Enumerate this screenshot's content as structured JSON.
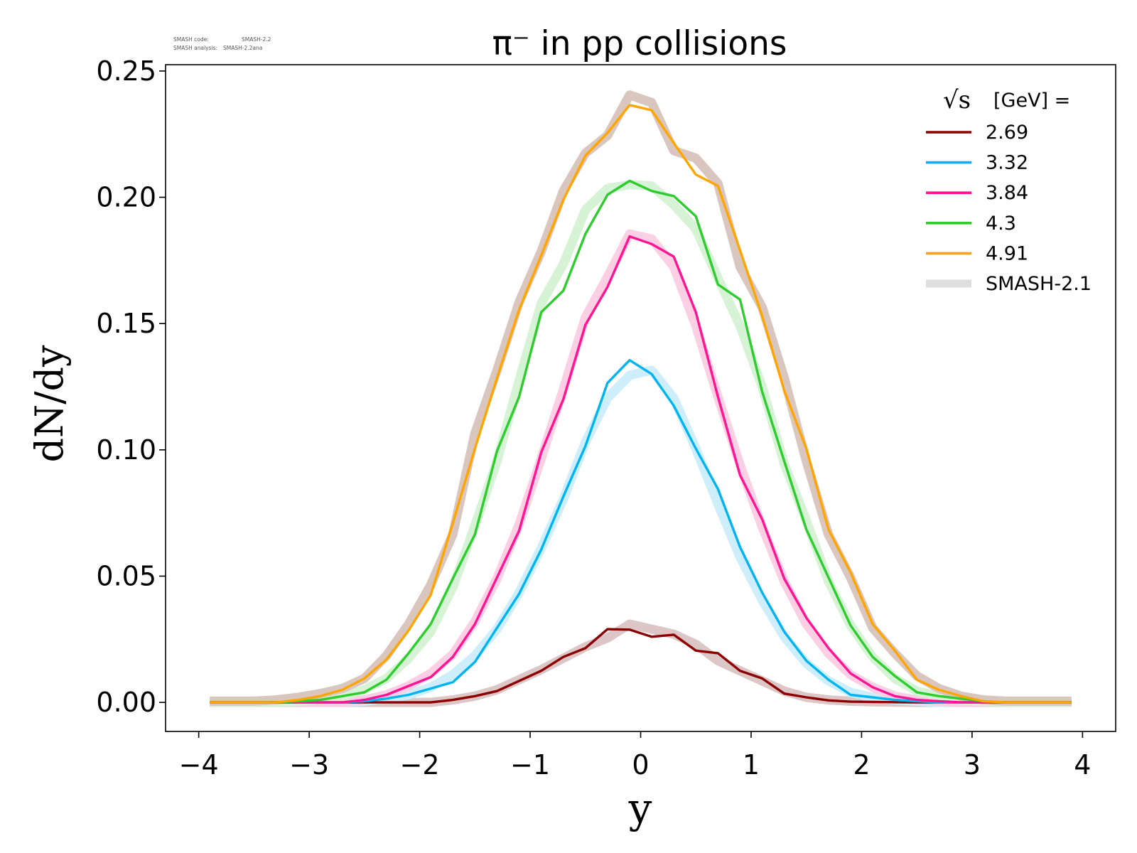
{
  "stamp": {
    "line1_label": "SMASH code:",
    "line1_value": "SMASH-2.2",
    "line2_label": "SMASH analysis:",
    "line2_value": "SMASH-2.2ana"
  },
  "chart_data": {
    "type": "line",
    "title": "π⁻ in pp collisions",
    "xlabel": "y",
    "ylabel": "dN/dy",
    "xlim": [
      -4.3,
      4.3
    ],
    "ylim": [
      -0.0115,
      0.2525
    ],
    "xticks": [
      -4,
      -3,
      -2,
      -1,
      0,
      1,
      2,
      3,
      4
    ],
    "xtick_labels": [
      "−4",
      "−3",
      "−2",
      "−1",
      "0",
      "1",
      "2",
      "3",
      "4"
    ],
    "yticks": [
      0.0,
      0.05,
      0.1,
      0.15,
      0.2,
      0.25
    ],
    "ytick_labels": [
      "0.00",
      "0.05",
      "0.10",
      "0.15",
      "0.20",
      "0.25"
    ],
    "grid": false,
    "legend": {
      "placement": "top-right",
      "title_prefix": "√s",
      "title_suffix": "[GeV] =",
      "reference_label": "SMASH-2.1"
    },
    "x": [
      -3.9,
      -3.7,
      -3.5,
      -3.3,
      -3.1,
      -2.9,
      -2.7,
      -2.5,
      -2.3,
      -2.1,
      -1.9,
      -1.7,
      -1.5,
      -1.3,
      -1.1,
      -0.9,
      -0.7,
      -0.5,
      -0.3,
      -0.1,
      0.1,
      0.3,
      0.5,
      0.7,
      0.9,
      1.1,
      1.3,
      1.5,
      1.7,
      1.9,
      2.1,
      2.3,
      2.5,
      2.7,
      2.9,
      3.1,
      3.3,
      3.5,
      3.7,
      3.9
    ],
    "series": [
      {
        "name": "2.69",
        "color": "#8b0000",
        "ref_color": "#dcc6c6",
        "values": [
          0,
          0,
          0,
          0,
          0,
          0,
          0,
          0,
          0,
          0,
          0,
          0.001,
          0.0025,
          0.0045,
          0.0085,
          0.0125,
          0.018,
          0.0215,
          0.029,
          0.0288,
          0.026,
          0.0268,
          0.0205,
          0.0195,
          0.0125,
          0.0095,
          0.0035,
          0.002,
          0.0008,
          0.0003,
          0.0002,
          0.0001,
          0,
          0,
          0,
          0,
          0,
          0,
          0,
          0
        ],
        "ref_values": [
          0,
          0,
          0,
          0,
          0,
          0,
          0,
          0,
          0,
          0,
          0,
          0.001,
          0.0025,
          0.005,
          0.009,
          0.013,
          0.0175,
          0.022,
          0.0255,
          0.031,
          0.029,
          0.027,
          0.023,
          0.0165,
          0.0125,
          0.0085,
          0.0045,
          0.002,
          0.001,
          0.0005,
          0.0002,
          0.0001,
          0,
          0,
          0,
          0,
          0,
          0,
          0,
          0
        ]
      },
      {
        "name": "3.32",
        "color": "#00b4f0",
        "ref_color": "#cdeefa",
        "values": [
          0,
          0,
          0,
          0,
          0,
          0,
          0,
          0.0005,
          0.0015,
          0.003,
          0.0055,
          0.008,
          0.016,
          0.0295,
          0.043,
          0.0605,
          0.0815,
          0.1015,
          0.1265,
          0.1355,
          0.13,
          0.1175,
          0.1005,
          0.0845,
          0.0615,
          0.0435,
          0.028,
          0.0165,
          0.009,
          0.003,
          0.002,
          0.001,
          0.0005,
          0,
          0,
          0,
          0,
          0,
          0,
          0
        ],
        "ref_values": [
          0,
          0,
          0,
          0,
          0,
          0,
          0,
          0.0005,
          0.0015,
          0.003,
          0.006,
          0.011,
          0.0185,
          0.029,
          0.0435,
          0.061,
          0.0805,
          0.103,
          0.1205,
          0.1295,
          0.1315,
          0.1205,
          0.1005,
          0.0785,
          0.0575,
          0.0405,
          0.026,
          0.0155,
          0.0085,
          0.004,
          0.002,
          0.001,
          0.0005,
          0,
          0,
          0,
          0,
          0,
          0,
          0
        ]
      },
      {
        "name": "3.84",
        "color": "#ff1493",
        "ref_color": "#fbd0e4",
        "values": [
          0,
          0,
          0,
          0,
          0,
          0,
          0,
          0.001,
          0.003,
          0.0065,
          0.01,
          0.018,
          0.031,
          0.0495,
          0.068,
          0.099,
          0.12,
          0.1495,
          0.1645,
          0.1845,
          0.1815,
          0.1765,
          0.1545,
          0.121,
          0.09,
          0.0725,
          0.049,
          0.0335,
          0.0215,
          0.0115,
          0.006,
          0.0025,
          0.001,
          0.0005,
          0,
          0,
          0,
          0,
          0,
          0
        ],
        "ref_values": [
          0,
          0,
          0,
          0,
          0,
          0,
          0,
          0.001,
          0.003,
          0.0065,
          0.0115,
          0.019,
          0.032,
          0.049,
          0.0705,
          0.0965,
          0.124,
          0.1525,
          0.1685,
          0.1855,
          0.1835,
          0.1725,
          0.149,
          0.121,
          0.094,
          0.0695,
          0.048,
          0.031,
          0.0195,
          0.011,
          0.006,
          0.0025,
          0.001,
          0.0005,
          0,
          0,
          0,
          0,
          0,
          0
        ]
      },
      {
        "name": "4.3",
        "color": "#2ecc2e",
        "ref_color": "#d6f3d6",
        "values": [
          0,
          0,
          0,
          0,
          0.0005,
          0.001,
          0.0025,
          0.004,
          0.009,
          0.0195,
          0.031,
          0.049,
          0.0665,
          0.0995,
          0.121,
          0.1545,
          0.163,
          0.1855,
          0.201,
          0.2065,
          0.2025,
          0.2005,
          0.1925,
          0.1655,
          0.1595,
          0.123,
          0.0955,
          0.0685,
          0.0495,
          0.0305,
          0.018,
          0.0105,
          0.004,
          0.0025,
          0.0015,
          0.0005,
          0,
          0,
          0,
          0
        ],
        "ref_values": [
          0,
          0,
          0,
          0,
          0.0005,
          0.0015,
          0.0025,
          0.005,
          0.0095,
          0.0175,
          0.028,
          0.0455,
          0.07,
          0.0955,
          0.1275,
          0.158,
          0.1735,
          0.195,
          0.2035,
          0.205,
          0.2045,
          0.197,
          0.1875,
          0.168,
          0.149,
          0.125,
          0.0945,
          0.072,
          0.048,
          0.0305,
          0.018,
          0.0095,
          0.0045,
          0.0025,
          0.001,
          0.0005,
          0,
          0,
          0,
          0
        ]
      },
      {
        "name": "4.91",
        "color": "#ffa500",
        "ref_color": "#d9c7bf",
        "values": [
          0,
          0,
          0,
          0,
          0.001,
          0.0025,
          0.005,
          0.0095,
          0.017,
          0.0285,
          0.0425,
          0.071,
          0.1005,
          0.1285,
          0.1555,
          0.177,
          0.199,
          0.2165,
          0.2255,
          0.2365,
          0.2345,
          0.2215,
          0.209,
          0.2045,
          0.179,
          0.153,
          0.1235,
          0.1005,
          0.0685,
          0.0515,
          0.031,
          0.0205,
          0.009,
          0.005,
          0.0025,
          0.0005,
          0,
          0,
          0,
          0
        ],
        "ref_values": [
          0.0005,
          0.0005,
          0.0005,
          0.001,
          0.002,
          0.0035,
          0.0055,
          0.0095,
          0.0185,
          0.031,
          0.0465,
          0.0665,
          0.1065,
          0.1315,
          0.1585,
          0.1785,
          0.2025,
          0.2175,
          0.2245,
          0.2405,
          0.2375,
          0.2185,
          0.2155,
          0.2055,
          0.1725,
          0.1565,
          0.1285,
          0.0955,
          0.0665,
          0.0495,
          0.0295,
          0.0195,
          0.0105,
          0.0055,
          0.0025,
          0.001,
          0.0005,
          0.0005,
          0.0005,
          0.0005
        ]
      }
    ]
  }
}
